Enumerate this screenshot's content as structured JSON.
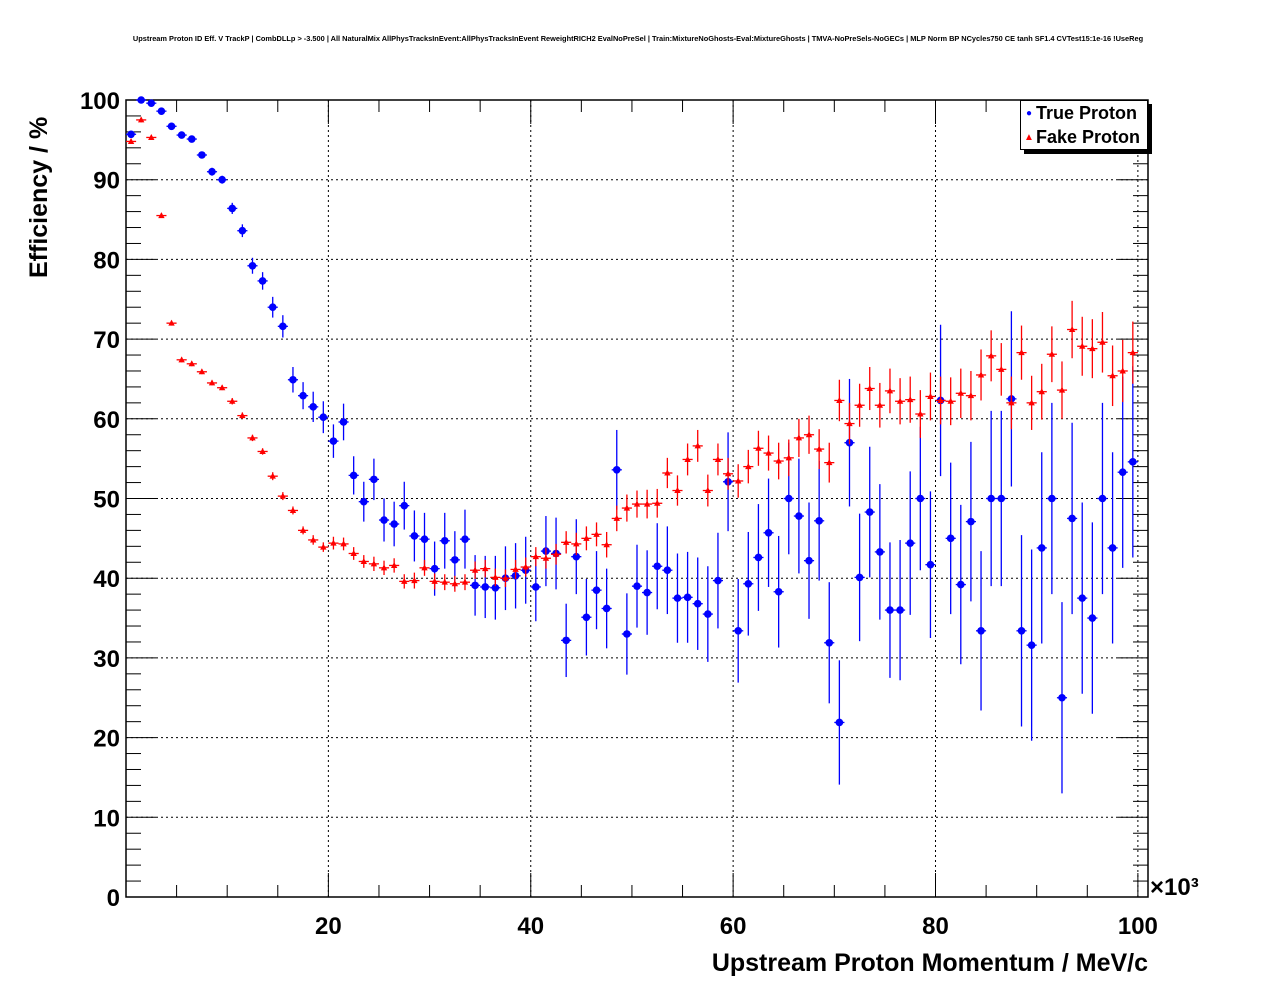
{
  "chart_data": {
    "type": "scatter",
    "title": "Upstream Proton ID Eff. V TrackP | CombDLLp > -3.500 | All NaturalMix AllPhysTracksInEvent:AllPhysTracksInEvent ReweightRICH2 EvalNoPreSel | Train:MixtureNoGhosts-Eval:MixtureGhosts | TMVA-NoPreSels-NoGECs | MLP Norm BP NCycles750 CE tanh SF1.4 CVTest15:1e-16 !UseReg",
    "xlabel": "Upstream Proton Momentum / MeV/c",
    "ylabel": "Efficiency / %",
    "x_multiplier_label": "×10³",
    "xlim": [
      0,
      101
    ],
    "ylim": [
      0,
      100
    ],
    "x_ticks": [
      20,
      40,
      60,
      80,
      100
    ],
    "y_ticks": [
      0,
      10,
      20,
      30,
      40,
      50,
      60,
      70,
      80,
      90,
      100
    ],
    "grid": true,
    "legend_position": "top-right",
    "bin_width": 1,
    "x_first_bin_center": 0.5,
    "series": [
      {
        "name": "True Proton",
        "color": "#0000ff",
        "marker": "circle",
        "values": [
          95.7,
          100,
          99.6,
          98.6,
          96.7,
          95.6,
          95.1,
          93.1,
          91,
          90,
          86.4,
          83.6,
          79.2,
          77.3,
          74,
          71.6,
          64.9,
          62.9,
          61.5,
          60.2,
          57.2,
          59.6,
          52.9,
          49.6,
          52.4,
          47.3,
          46.8,
          49.1,
          45.3,
          44.9,
          41.2,
          44.7,
          42.3,
          44.9,
          39.1,
          38.9,
          38.8,
          40,
          40.3,
          41,
          38.9,
          43.4,
          43.1,
          32.2,
          42.7,
          35.1,
          38.5,
          36.2,
          53.6,
          33,
          39,
          38.2,
          41.5,
          41,
          37.5,
          37.6,
          36.8,
          35.5,
          39.7,
          52.1,
          33.4,
          39.3,
          42.6,
          45.7,
          38.3,
          50,
          47.8,
          42.2,
          47.2,
          31.9,
          21.9,
          57,
          40.1,
          48.3,
          43.3,
          36,
          36,
          44.4,
          50,
          41.7,
          62.3,
          45,
          39.2,
          47.1,
          33.4,
          50,
          50,
          62.5,
          33.4,
          31.6,
          43.8,
          50,
          25,
          47.5,
          37.5,
          35,
          50,
          43.8,
          53.3,
          54.6
        ],
        "errors": [
          0.4,
          0.3,
          0.3,
          0.3,
          0.3,
          0.4,
          0.4,
          0.4,
          0.5,
          0.5,
          0.7,
          0.8,
          1,
          1.1,
          1.3,
          1.4,
          1.6,
          1.7,
          1.9,
          2,
          2.1,
          2.3,
          2.4,
          2.5,
          2.6,
          2.7,
          2.8,
          3,
          3.2,
          3.3,
          3.4,
          3.5,
          3.6,
          3.7,
          3.8,
          3.9,
          4,
          4,
          4.1,
          4.2,
          4.3,
          4.4,
          4.5,
          4.6,
          4.7,
          4.8,
          4.9,
          5,
          5,
          5.1,
          5.2,
          5.3,
          5.4,
          5.5,
          5.6,
          5.7,
          5.8,
          6,
          6,
          6.2,
          6.5,
          6.5,
          6.7,
          6.8,
          7,
          7,
          7.2,
          7.3,
          7.5,
          7.6,
          7.8,
          8,
          8,
          8.2,
          8.5,
          8.5,
          8.8,
          9,
          9,
          9.2,
          9.5,
          9.5,
          10,
          10,
          10,
          11,
          11,
          11,
          12,
          12,
          12,
          12,
          12,
          12,
          12,
          12,
          12,
          12,
          12,
          12
        ]
      },
      {
        "name": "Fake Proton",
        "color": "#ff0000",
        "marker": "triangle",
        "values": [
          94.8,
          97.5,
          95.3,
          85.5,
          72,
          67.4,
          66.9,
          65.9,
          64.5,
          63.9,
          62.2,
          60.4,
          57.6,
          55.9,
          52.8,
          50.3,
          48.5,
          46,
          44.8,
          43.9,
          44.4,
          44.3,
          43.1,
          42.1,
          41.8,
          41.3,
          41.6,
          39.6,
          39.7,
          41.3,
          39.6,
          39.5,
          39.3,
          39.5,
          41,
          41.2,
          40.1,
          40,
          41.1,
          41.4,
          42.7,
          42.5,
          43,
          44.5,
          44.3,
          45,
          45.5,
          44.2,
          47.5,
          48.8,
          49.3,
          49.3,
          49.4,
          53.2,
          51,
          54.9,
          56.6,
          51,
          54.9,
          53.1,
          52.2,
          54,
          56.3,
          55.7,
          54.7,
          55.1,
          57.6,
          58,
          56.2,
          54.5,
          62.3,
          59.4,
          61.7,
          63.8,
          61.7,
          63.5,
          62.2,
          62.4,
          60.6,
          62.8,
          62.3,
          62.2,
          63.2,
          62.9,
          65.5,
          67.9,
          66.2,
          62,
          68.3,
          62,
          63.4,
          68.1,
          63.6,
          71.2,
          69.1,
          68.8,
          69.6,
          65.4,
          66,
          68.3
        ],
        "errors": [
          0.3,
          0.3,
          0.3,
          0.3,
          0.3,
          0.3,
          0.3,
          0.3,
          0.3,
          0.3,
          0.4,
          0.4,
          0.4,
          0.4,
          0.5,
          0.5,
          0.5,
          0.5,
          0.6,
          0.6,
          0.8,
          0.8,
          0.8,
          0.8,
          0.9,
          0.9,
          0.9,
          0.9,
          1,
          1,
          1,
          1,
          1,
          1,
          1.1,
          1.1,
          1.1,
          1.1,
          1.2,
          1.2,
          1.2,
          1.3,
          1.3,
          1.4,
          1.4,
          1.5,
          1.5,
          1.6,
          1.6,
          1.7,
          1.7,
          1.8,
          1.8,
          1.9,
          1.9,
          2,
          2,
          2,
          2,
          2,
          2.1,
          2.1,
          2.2,
          2.2,
          2.3,
          2.3,
          2.4,
          2.4,
          2.5,
          2.5,
          2.6,
          2.6,
          2.7,
          2.7,
          2.8,
          2.8,
          2.9,
          2.9,
          3,
          3,
          3,
          3,
          3.1,
          3.1,
          3.2,
          3.2,
          3.3,
          3.3,
          3.4,
          3.4,
          3.5,
          3.5,
          3.6,
          3.6,
          3.7,
          3.7,
          3.8,
          3.8,
          3.9,
          3.9
        ]
      }
    ]
  }
}
